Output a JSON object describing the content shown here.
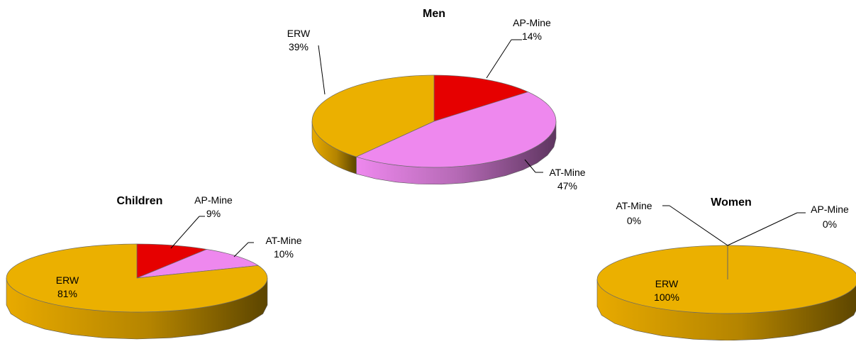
{
  "chart_data": [
    {
      "type": "pie",
      "title": "Men",
      "categories": [
        "AP-Mine",
        "AT-Mine",
        "ERW"
      ],
      "values": [
        14,
        47,
        39
      ],
      "labels": [
        "14%",
        "47%",
        "39%"
      ],
      "style": "3d"
    },
    {
      "type": "pie",
      "title": "Children",
      "categories": [
        "AP-Mine",
        "AT-Mine",
        "ERW"
      ],
      "values": [
        9,
        10,
        81
      ],
      "labels": [
        "9%",
        "10%",
        "81%"
      ],
      "style": "3d"
    },
    {
      "type": "pie",
      "title": "Women",
      "categories": [
        "AP-Mine",
        "AT-Mine",
        "ERW"
      ],
      "values": [
        0,
        0,
        100
      ],
      "labels": [
        "0%",
        "0%",
        "100%"
      ],
      "style": "3d"
    }
  ],
  "colors": {
    "AP-Mine": "#e60000",
    "AT-Mine": "#ee88ee",
    "ERW": "#ebb000"
  }
}
